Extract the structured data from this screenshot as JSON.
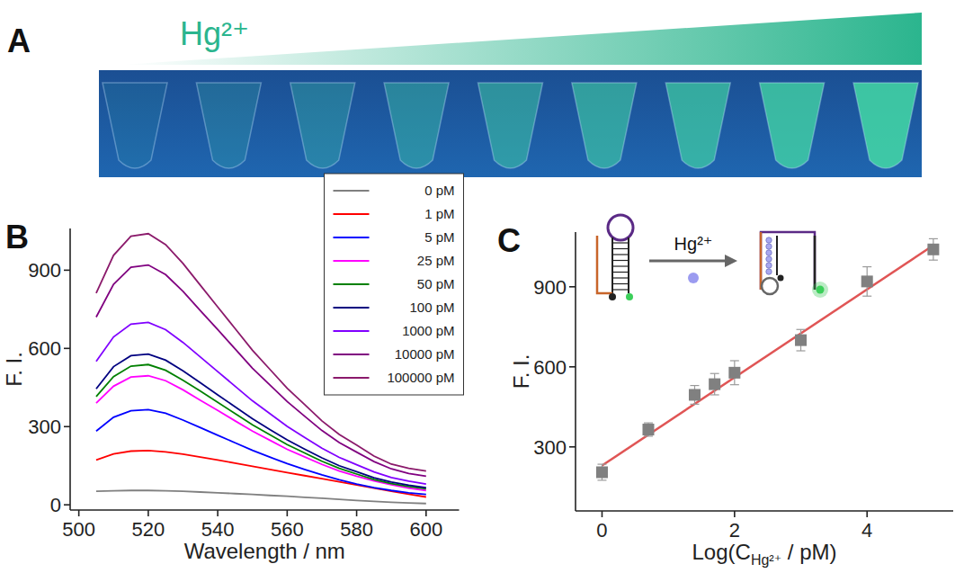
{
  "image_panel": {
    "panel_label": "A",
    "title": "Hg²⁺"
  },
  "chart_data": [
    {
      "panel_label": "B",
      "type": "line",
      "xlabel": "Wavelength / nm",
      "ylabel": "F. I.",
      "x": [
        505,
        510,
        515,
        520,
        525,
        530,
        535,
        540,
        545,
        550,
        555,
        560,
        565,
        570,
        575,
        580,
        585,
        590,
        595,
        600
      ],
      "series": [
        {
          "name": "0 pM",
          "color": "#808080",
          "values": [
            52,
            54,
            55,
            55,
            54,
            52,
            49,
            46,
            43,
            40,
            36,
            33,
            29,
            25,
            21,
            17,
            13,
            10,
            7,
            5
          ]
        },
        {
          "name": "1 pM",
          "color": "#ff0000",
          "values": [
            172,
            195,
            206,
            208,
            203,
            194,
            183,
            172,
            160,
            148,
            136,
            124,
            112,
            100,
            88,
            76,
            64,
            52,
            41,
            30
          ]
        },
        {
          "name": "5 pM",
          "color": "#0000ff",
          "values": [
            283,
            336,
            361,
            365,
            351,
            325,
            296,
            267,
            238,
            209,
            183,
            158,
            136,
            115,
            96,
            80,
            66,
            55,
            46,
            40
          ]
        },
        {
          "name": "25 pM",
          "color": "#ff00ff",
          "values": [
            390,
            455,
            490,
            495,
            476,
            441,
            401,
            362,
            322,
            283,
            248,
            213,
            184,
            155,
            130,
            110,
            92,
            77,
            64,
            55
          ]
        },
        {
          "name": "50 pM",
          "color": "#008000",
          "values": [
            415,
            492,
            532,
            538,
            516,
            478,
            436,
            393,
            350,
            307,
            269,
            231,
            199,
            167,
            140,
            118,
            97,
            81,
            70,
            62
          ]
        },
        {
          "name": "100 pM",
          "color": "#000080",
          "values": [
            445,
            530,
            572,
            578,
            555,
            514,
            468,
            422,
            376,
            330,
            289,
            249,
            214,
            180,
            150,
            127,
            104,
            87,
            75,
            66
          ]
        },
        {
          "name": "1000 pM",
          "color": "#8000ff",
          "values": [
            550,
            644,
            693,
            700,
            672,
            623,
            567,
            511,
            455,
            399,
            350,
            301,
            259,
            217,
            182,
            154,
            126,
            105,
            91,
            80
          ]
        },
        {
          "name": "10000 pM",
          "color": "#800080",
          "values": [
            720,
            846,
            911,
            920,
            883,
            819,
            745,
            672,
            598,
            524,
            460,
            396,
            340,
            285,
            239,
            202,
            166,
            138,
            120,
            110
          ]
        },
        {
          "name": "100000 pM",
          "color": "#8b1a6b",
          "values": [
            812,
            957,
            1030,
            1040,
            998,
            926,
            842,
            759,
            676,
            593,
            520,
            447,
            385,
            322,
            270,
            229,
            187,
            156,
            140,
            130
          ]
        }
      ],
      "xlim": [
        497.5,
        609.5
      ],
      "ylim": [
        -20,
        1060
      ],
      "xticks": [
        500,
        520,
        540,
        560,
        580,
        600
      ],
      "yticks": [
        0,
        300,
        600,
        900
      ],
      "legend": "upper right",
      "grid": false
    },
    {
      "panel_label": "C",
      "type": "scatter",
      "xlabel": {
        "text": "Log(C",
        "sub": "Hg²⁺",
        "tail": " / pM)"
      },
      "ylabel": "F. I.",
      "annotation": "Hg²⁺",
      "series": [
        {
          "type": "scatter",
          "x": [
            0,
            0.699,
            1.398,
            1.699,
            2,
            3,
            4,
            5
          ],
          "values": [
            205,
            365,
            495,
            535,
            578,
            700,
            920,
            1040
          ],
          "errors": [
            30,
            25,
            35,
            40,
            45,
            40,
            55,
            40
          ],
          "color": "#808080",
          "marker": "square"
        },
        {
          "type": "line",
          "x": [
            0,
            5
          ],
          "values": [
            230,
            1055
          ],
          "color": "#e05555",
          "line_style": "solid"
        }
      ],
      "xlim": [
        -0.4,
        5.3
      ],
      "ylim": [
        60,
        1105
      ],
      "xticks": [
        0,
        2,
        4
      ],
      "yticks": [
        300,
        600,
        900
      ],
      "grid": false
    }
  ]
}
